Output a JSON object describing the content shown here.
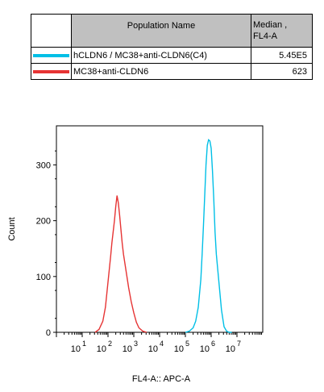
{
  "legend": {
    "header_name": "Population Name",
    "header_median_line1": "Median ,",
    "header_median_line2": "FL4-A",
    "rows": [
      {
        "name": "hCLDN6 / MC38+anti-CLDN6(C4)",
        "median": "5.45E5",
        "color": "#00bfe6"
      },
      {
        "name": "MC38+anti-CLDN6",
        "median": "623",
        "color": "#e63434"
      }
    ]
  },
  "chart_data": {
    "type": "line",
    "title": "",
    "xlabel": "FL4-A:: APC-A",
    "ylabel": "Count",
    "x_scale": "log",
    "xlim": [
      0,
      8
    ],
    "ylim": [
      0,
      370
    ],
    "yticks": [
      0,
      100,
      200,
      300
    ],
    "xtick_labels": [
      {
        "base": "10",
        "exp": "1"
      },
      {
        "base": "10",
        "exp": "2"
      },
      {
        "base": "10",
        "exp": "3"
      },
      {
        "base": "10",
        "exp": "4"
      },
      {
        "base": "10",
        "exp": "5"
      },
      {
        "base": "10",
        "exp": "6"
      },
      {
        "base": "10",
        "exp": "7"
      }
    ],
    "series": [
      {
        "name": "hCLDN6 / MC38+anti-CLDN6(C4)",
        "color": "#00bfe6",
        "x": [
          5.0,
          5.15,
          5.3,
          5.4,
          5.5,
          5.6,
          5.65,
          5.7,
          5.75,
          5.8,
          5.85,
          5.9,
          5.95,
          6.0,
          6.05,
          6.1,
          6.15,
          6.2,
          6.25,
          6.3,
          6.4,
          6.5,
          6.6,
          6.7,
          6.8
        ],
        "y": [
          0,
          2,
          8,
          20,
          45,
          95,
          140,
          190,
          245,
          300,
          335,
          345,
          343,
          330,
          290,
          240,
          180,
          140,
          115,
          90,
          40,
          10,
          2,
          0,
          0
        ]
      },
      {
        "name": "MC38+anti-CLDN6",
        "color": "#e63434",
        "x": [
          1.5,
          1.65,
          1.8,
          1.9,
          2.0,
          2.1,
          2.15,
          2.2,
          2.25,
          2.3,
          2.35,
          2.4,
          2.45,
          2.5,
          2.55,
          2.6,
          2.7,
          2.8,
          2.9,
          3.0,
          3.1,
          3.2,
          3.35,
          3.5
        ],
        "y": [
          0,
          5,
          20,
          45,
          90,
          135,
          160,
          180,
          200,
          225,
          245,
          232,
          210,
          185,
          160,
          140,
          110,
          80,
          55,
          35,
          18,
          8,
          2,
          0
        ]
      }
    ]
  }
}
